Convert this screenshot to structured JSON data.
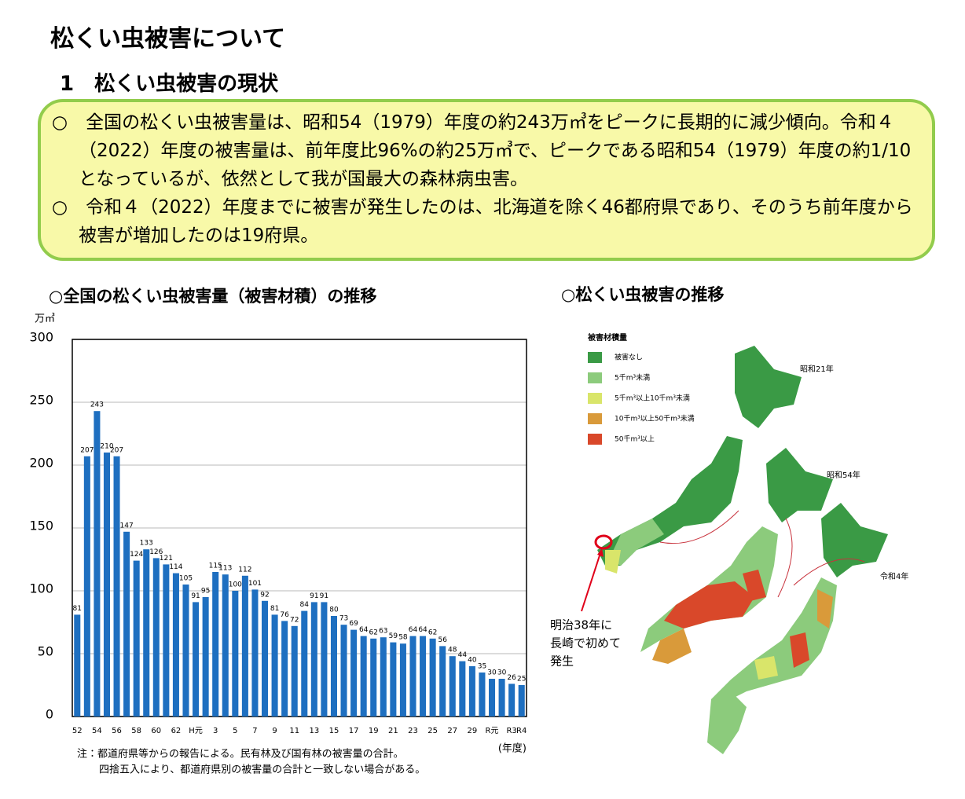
{
  "header": {
    "title": "松くい虫被害について",
    "subtitle": "1　松くい虫被害の現状"
  },
  "summary": [
    "○　全国の松くい虫被害量は、昭和54（1979）年度の約243万㎥をピークに長期的に減少傾向。令和４（2022）年度の被害量は、前年度比96%の約25万㎥で、ピークである昭和54（1979）年度の約1/10となっているが、依然として我が国最大の森林病虫害。",
    "○　令和４（2022）年度までに被害が発生したのは、北海道を除く46都府県であり、そのうち前年度から被害が増加したのは19府県。"
  ],
  "chart_data": {
    "type": "bar",
    "title": "○全国の松くい虫被害量（被害材積）の推移",
    "y_label": "万㎥",
    "x_label": "(年度)",
    "categories": [
      "52",
      null,
      "54",
      null,
      "56",
      null,
      "58",
      null,
      "60",
      null,
      "62",
      null,
      "H元",
      null,
      "3",
      null,
      "5",
      null,
      "7",
      null,
      "9",
      null,
      "11",
      null,
      "13",
      null,
      "15",
      null,
      "17",
      null,
      "19",
      null,
      "21",
      null,
      "23",
      null,
      "25",
      null,
      "27",
      null,
      "29",
      null,
      "R元",
      null,
      "R3",
      "R4"
    ],
    "values": [
      81,
      207,
      243,
      210,
      207,
      147,
      124,
      133,
      126,
      121,
      114,
      105,
      91,
      95,
      115,
      113,
      100,
      112,
      101,
      92,
      81,
      76,
      72,
      84,
      91,
      91,
      80,
      73,
      69,
      64,
      62,
      63,
      59,
      58,
      64,
      64,
      62,
      56,
      48,
      44,
      40,
      35,
      30,
      30,
      26,
      25
    ],
    "color": "#1e6fc0",
    "ylim": [
      0,
      300
    ],
    "yticks": [
      0,
      50,
      100,
      150,
      200,
      250,
      300
    ],
    "grid": true,
    "notes": [
      "注：都道府県等からの報告による。民有林及び国有林の被害量の合計。",
      "四捨五入により、都道府県別の被害量の合計と一致しない場合がある。"
    ]
  },
  "map": {
    "title": "○松くい虫被害の推移",
    "legend_title": "被害材積量",
    "legend": [
      {
        "label": "被害なし",
        "color": "#3a9a45"
      },
      {
        "label": "5千m³未満",
        "color": "#8ccb7c"
      },
      {
        "label": "5千m³以上10千m³未満",
        "color": "#d9e56a"
      },
      {
        "label": "10千m³以上50千m³未満",
        "color": "#d99a3a"
      },
      {
        "label": "50千m³以上",
        "color": "#d9482a"
      }
    ],
    "map_labels": [
      "昭和21年",
      "昭和54年",
      "令和4年"
    ],
    "origin_note": [
      "明治38年に",
      "長崎で初めて",
      "発生"
    ]
  }
}
